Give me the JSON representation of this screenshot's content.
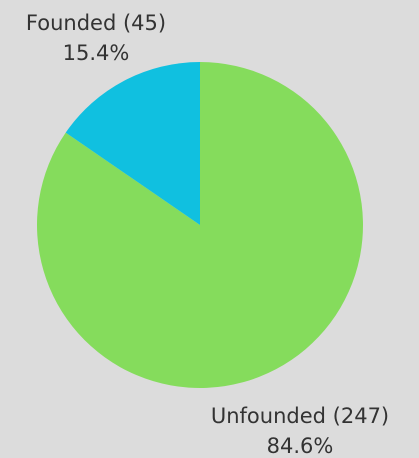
{
  "chart_data": {
    "type": "pie",
    "title": "",
    "start_angle_deg": 0,
    "direction": "clockwise",
    "slices": [
      {
        "label": "Unfounded (247)",
        "count": 247,
        "percent_label": "84.6%",
        "percent": 84.6,
        "color": "#85dc5c"
      },
      {
        "label": "Founded (45)",
        "count": 45,
        "percent_label": "15.4%",
        "percent": 15.4,
        "color": "#10c0e0"
      }
    ]
  }
}
